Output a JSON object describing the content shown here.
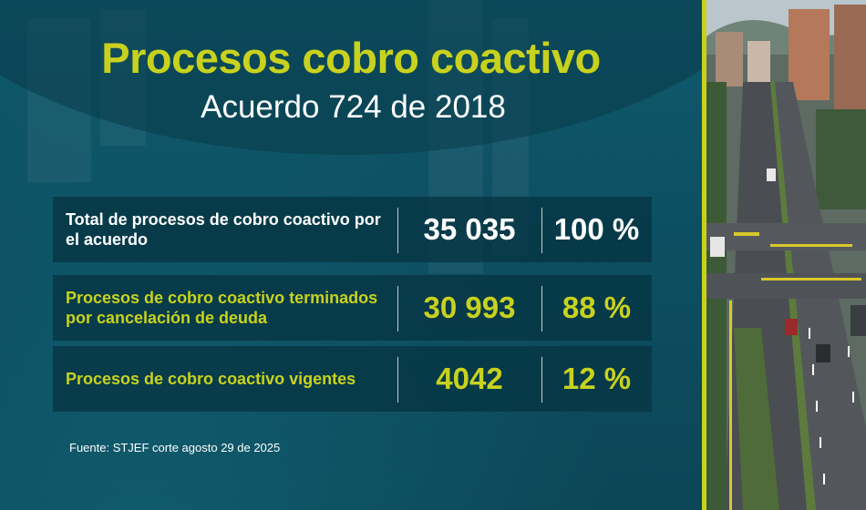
{
  "title": "Procesos cobro coactivo",
  "subtitle": "Acuerdo 724 de 2018",
  "rows": [
    {
      "label": "Total de procesos de cobro coactivo por el acuerdo",
      "count": "35 035",
      "percent": "100 %"
    },
    {
      "label": "Procesos de cobro coactivo terminados por cancelación de deuda",
      "count": "30 993",
      "percent": "88 %"
    },
    {
      "label": "Procesos de cobro coactivo vigentes",
      "count": "4042",
      "percent": "12 %"
    }
  ],
  "source": "Fuente: STJEF corte agosto 29 de 2025",
  "colors": {
    "accent": "#c8d21e",
    "background": "#0d4f61",
    "row": "#06343f",
    "text": "#ffffff"
  }
}
